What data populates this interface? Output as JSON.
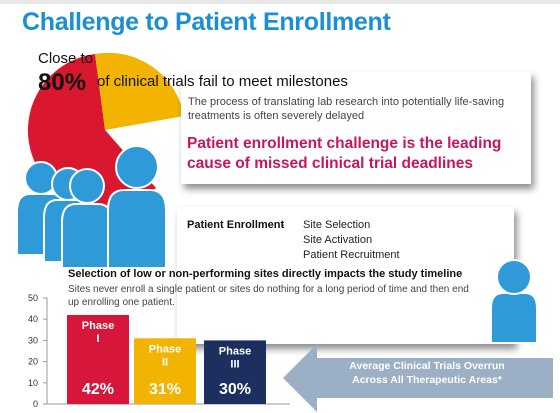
{
  "title": "Challenge to Patient Enrollment",
  "headline": {
    "prefix": "Close to",
    "percent": "80%",
    "text": "of clinical trials fail to meet milestones"
  },
  "delay_text": "The process of translating lab research into potentially life-saving treatments is often severely delayed",
  "challenge_text": "Patient enrollment challenge is the leading cause of missed clinical trial deadlines",
  "enrollment": {
    "label": "Patient Enrollment",
    "separator": "-",
    "items": [
      "Site Selection",
      "Site Activation",
      "Patient Recruitment"
    ]
  },
  "selection_text": "Selection of low or non-performing sites directly impacts the study timeline",
  "sites_text": "Sites never enroll a single patient or sites do nothing for a long period of time and then end up enrolling one patient.",
  "overrun_text": "Average Clinical Trials Overrun Across All Therapeutic Areas*",
  "icons": [
    "pie-chart-icon",
    "person-group-icon",
    "person-icon",
    "left-arrow-icon"
  ],
  "colors": {
    "title": "#1b8fd6",
    "accent_red": "#c8155e",
    "pie_red": "#d9172e",
    "pie_yellow": "#f2b400",
    "people": "#2e9ad8",
    "arrow": "#9bb0c4",
    "phase1": "#d6163a",
    "phase2": "#f2b400",
    "phase3": "#1d2f5e"
  },
  "chart_data": {
    "type": "bar",
    "categories": [
      "Phase I",
      "Phase II",
      "Phase III"
    ],
    "category_lines": [
      [
        "Phase",
        "I"
      ],
      [
        "Phase",
        "II"
      ],
      [
        "Phase",
        "III"
      ]
    ],
    "values": [
      42,
      31,
      30
    ],
    "value_labels": [
      "42%",
      "31%",
      "30%"
    ],
    "colors": [
      "#d6163a",
      "#f2b400",
      "#1d2f5e"
    ],
    "yticks": [
      0,
      10,
      20,
      30,
      40,
      50
    ],
    "ylim": [
      0,
      50
    ],
    "title": "",
    "xlabel": "",
    "ylabel": ""
  }
}
